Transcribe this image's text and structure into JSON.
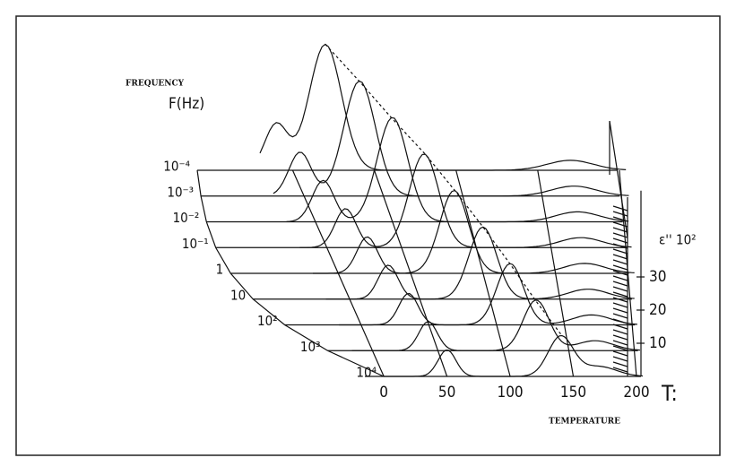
{
  "chart_data": {
    "type": "waterfall3d",
    "y_axis_title": "FREQUENCY",
    "y_axis_unit": "F(Hz)",
    "x_axis_title": "TEMPERATURE",
    "x_axis_symbol": "T:",
    "z_axis_title": "ε'' 10²",
    "categories": [
      "10⁻⁴",
      "10⁻³",
      "10⁻²",
      "10⁻¹",
      "1",
      "10",
      "10²",
      "10³",
      "10⁴"
    ],
    "xlim": [
      -20,
      205
    ],
    "xticks": [
      0,
      50,
      100,
      150,
      200
    ],
    "zlim": [
      0,
      40
    ],
    "zticks": [
      10,
      20,
      30
    ]
  }
}
